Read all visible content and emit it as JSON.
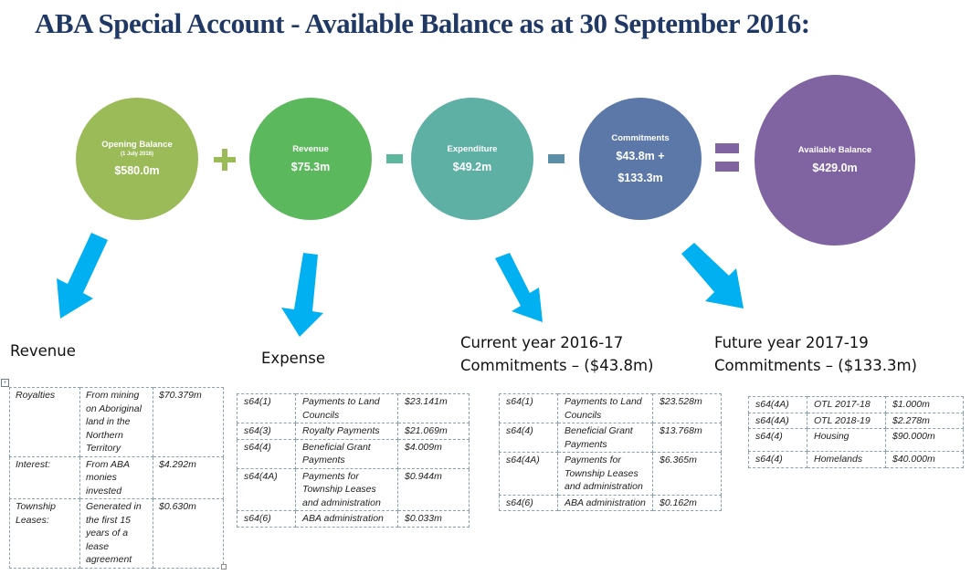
{
  "title": "ABA Special Account - Available Balance as at 30 September 2016:",
  "colors": {
    "title": "#1f3864",
    "opening": "#9bbb59",
    "revenue": "#5cb85c",
    "expenditure": "#5fb0a4",
    "commitments": "#5b78a8",
    "available": "#8064a2",
    "arrow": "#00b0f0"
  },
  "circles": {
    "opening": {
      "label": "Opening Balance",
      "sub": "(1 July 2016)",
      "value": "$580.0m"
    },
    "revenue": {
      "label": "Revenue",
      "value": "$75.3m"
    },
    "expenditure": {
      "label": "Expenditure",
      "value": "$49.2m"
    },
    "commitments": {
      "label": "Commitments",
      "value": "$43.8m +",
      "value2": "$133.3m"
    },
    "available": {
      "label": "Available Balance",
      "value": "$429.0m"
    }
  },
  "operators": [
    "plus-icon",
    "minus-icon",
    "minus-icon",
    "equals-icon"
  ],
  "sections": {
    "revenue": {
      "title": "Revenue"
    },
    "expense": {
      "title": "Expense"
    },
    "current": {
      "line1": "Current year 2016-17",
      "line2": "Commitments – ($43.8m)"
    },
    "future": {
      "line1": "Future year 2017-19",
      "line2": "Commitments – ($133.3m)"
    }
  },
  "tables": {
    "revenue": [
      {
        "source": "Royalties",
        "desc": "From mining on Aboriginal land in the Northern Territory",
        "amount": "$70.379m"
      },
      {
        "source": "Interest:",
        "desc": "From ABA monies invested",
        "amount": "$4.292m"
      },
      {
        "source": "Township Leases:",
        "desc": "Generated in the first 15 years of a lease agreement",
        "amount": "$0.630m"
      }
    ],
    "expense": [
      {
        "section": "s64(1)",
        "desc": "Payments to Land Councils",
        "amount": "$23.141m"
      },
      {
        "section": "s64(3)",
        "desc": "Royalty Payments",
        "amount": "$21.069m"
      },
      {
        "section": "s64(4)",
        "desc": "Beneficial Grant Payments",
        "amount": "$4.009m"
      },
      {
        "section": "s64(4A)",
        "desc": "Payments for Township Leases and administration",
        "amount": "$0.944m"
      },
      {
        "section": "s64(6)",
        "desc": "ABA administration",
        "amount": "$0.033m"
      }
    ],
    "current": [
      {
        "section": "s64(1)",
        "desc": "Payments to Land Councils",
        "amount": "$23.528m"
      },
      {
        "section": "s64(4)",
        "desc": "Beneficial Grant Payments",
        "amount": "$13.768m"
      },
      {
        "section": "s64(4A)",
        "desc": "Payments for Township Leases and administration",
        "amount": "$6.365m"
      },
      {
        "section": "s64(6)",
        "desc": "ABA administration",
        "amount": "$0.162m"
      }
    ],
    "future": [
      {
        "section": "s64(4A)",
        "desc": "OTL 2017-18",
        "amount": "$1.000m"
      },
      {
        "section": "s64(4A)",
        "desc": "OTL 2018-19",
        "amount": "$2.278m"
      },
      {
        "section": "s64(4)",
        "desc": "Housing",
        "amount": "$90.000m"
      },
      {
        "section": "s64(4)",
        "desc": "Homelands",
        "amount": "$40.000m"
      }
    ]
  }
}
